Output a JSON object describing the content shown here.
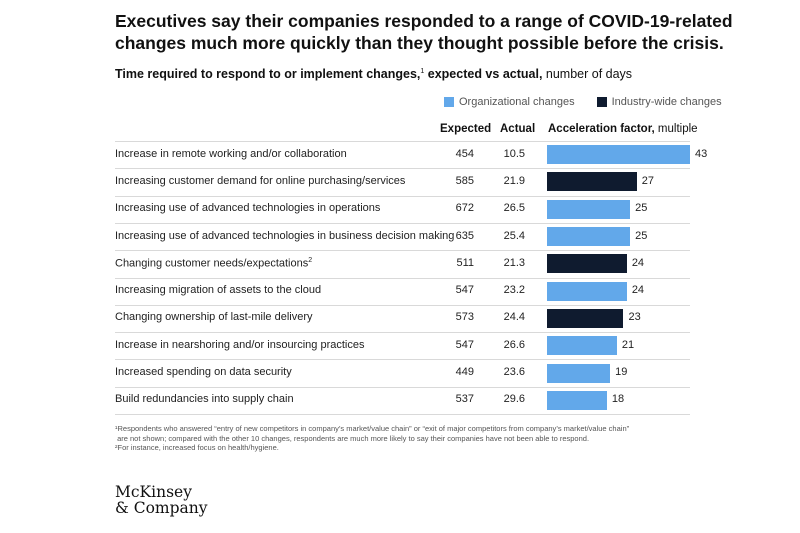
{
  "title": "Executives say their companies responded to a range of COVID-19-related changes much more quickly than they thought possible before the crisis.",
  "subtitle": {
    "bold": "Time required to respond to or implement changes,",
    "sup": "1",
    "bold2": " expected vs actual,",
    "normal": " number of days"
  },
  "legend": {
    "org": {
      "label": "Organizational changes",
      "color": "#62a8ea"
    },
    "industry": {
      "label": "Industry-wide changes",
      "color": "#0f1b2f"
    }
  },
  "headers": {
    "expected": "Expected",
    "actual": "Actual",
    "accel_bold": "Acceleration factor,",
    "accel_light": " multiple"
  },
  "chart_data": {
    "type": "table",
    "columns": [
      "Expected",
      "Actual",
      "Acceleration factor, multiple"
    ],
    "rows": [
      {
        "label": "Increase in remote working and/or collaboration",
        "sup": "",
        "expected": "454",
        "actual": "10.5",
        "factor": 43,
        "group": "org"
      },
      {
        "label": "Increasing customer demand for online purchasing/services",
        "sup": "",
        "expected": "585",
        "actual": "21.9",
        "factor": 27,
        "group": "industry"
      },
      {
        "label": "Increasing use of advanced technologies in operations",
        "sup": "",
        "expected": "672",
        "actual": "26.5",
        "factor": 25,
        "group": "org"
      },
      {
        "label": "Increasing use of advanced technologies in business decision making",
        "sup": "",
        "expected": "635",
        "actual": "25.4",
        "factor": 25,
        "group": "org"
      },
      {
        "label": "Changing customer needs/expectations",
        "sup": "2",
        "expected": "511",
        "actual": "21.3",
        "factor": 24,
        "group": "industry"
      },
      {
        "label": "Increasing migration of assets to the cloud",
        "sup": "",
        "expected": "547",
        "actual": "23.2",
        "factor": 24,
        "group": "org"
      },
      {
        "label": "Changing ownership of last-mile delivery",
        "sup": "",
        "expected": "573",
        "actual": "24.4",
        "factor": 23,
        "group": "industry"
      },
      {
        "label": "Increase in nearshoring and/or insourcing practices",
        "sup": "",
        "expected": "547",
        "actual": "26.6",
        "factor": 21,
        "group": "org"
      },
      {
        "label": "Increased spending on data security",
        "sup": "",
        "expected": "449",
        "actual": "23.6",
        "factor": 19,
        "group": "org"
      },
      {
        "label": "Build redundancies into supply chain",
        "sup": "",
        "expected": "537",
        "actual": "29.6",
        "factor": 18,
        "group": "org"
      }
    ],
    "factor_max": 43
  },
  "footnotes": [
    "¹Respondents who answered “entry of new competitors in company’s market/value chain” or “exit of major competitors from company’s market/value chain”",
    " are not shown; compared with the other 10 changes, respondents are much more likely to say their companies have not been able to respond.",
    "²For instance, increased focus on health/hygiene."
  ],
  "logo": {
    "line1": "McKinsey",
    "line2": "& Company"
  }
}
